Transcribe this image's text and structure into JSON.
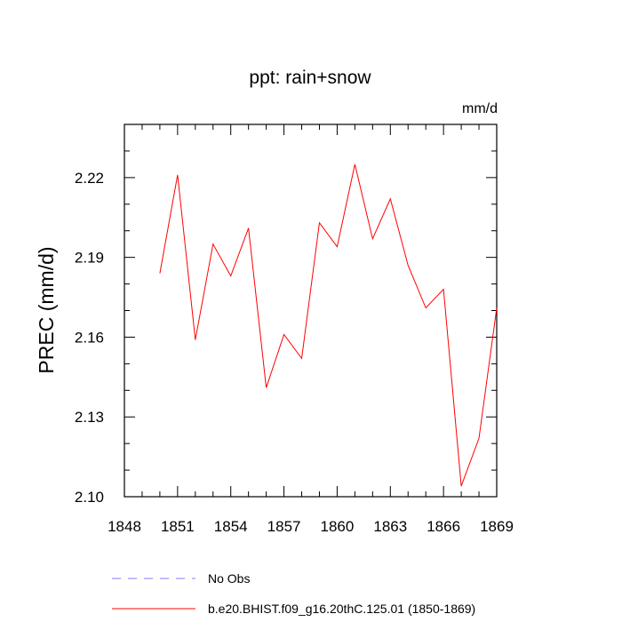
{
  "chart_data": {
    "type": "line",
    "title": "ppt: rain+snow",
    "units": "mm/d",
    "xlabel": "",
    "ylabel": "PREC  (mm/d)",
    "xlim": [
      1848,
      1869
    ],
    "ylim": [
      2.1,
      2.24
    ],
    "xticks": [
      "1848",
      "1851",
      "1854",
      "1857",
      "1860",
      "1863",
      "1866",
      "1869"
    ],
    "yticks": [
      "2.10",
      "2.13",
      "2.16",
      "2.19",
      "2.22"
    ],
    "grid": false,
    "legend_position": "bottom-left",
    "series": [
      {
        "name": "b.e20.BHIST.f09_g16.20thC.125.01 (1850-1869)",
        "color": "#ff0000",
        "style": "solid",
        "x": [
          1850,
          1851,
          1852,
          1853,
          1854,
          1855,
          1856,
          1857,
          1858,
          1859,
          1860,
          1861,
          1862,
          1863,
          1864,
          1865,
          1866,
          1867,
          1868,
          1869
        ],
        "y": [
          2.184,
          2.221,
          2.159,
          2.195,
          2.183,
          2.201,
          2.141,
          2.161,
          2.152,
          2.203,
          2.194,
          2.225,
          2.197,
          2.212,
          2.187,
          2.171,
          2.178,
          2.104,
          2.122,
          2.171
        ]
      },
      {
        "name": "No Obs",
        "color": "#7f7fff",
        "style": "dashed",
        "x": [],
        "y": []
      }
    ]
  }
}
